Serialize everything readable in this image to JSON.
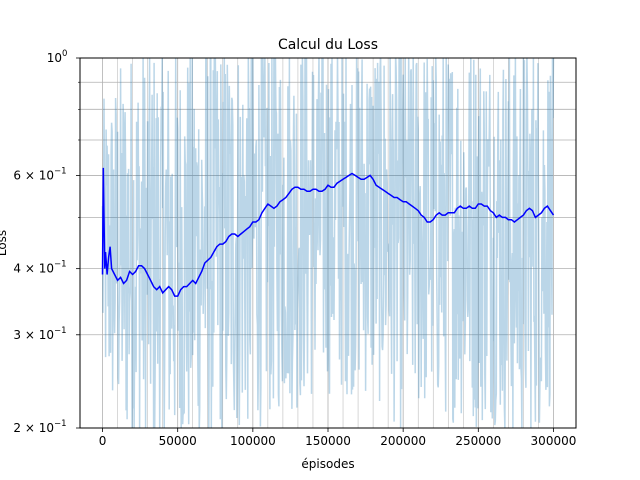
{
  "chart_data": {
    "type": "line",
    "title": "Calcul du Loss",
    "xlabel": "épisodes",
    "ylabel": "Loss",
    "xlim": [
      -15000,
      315000
    ],
    "ylim": [
      0.2,
      1.0
    ],
    "yscale": "log",
    "grid": "major and minor",
    "x_ticks": [
      {
        "value": 0,
        "label": "0"
      },
      {
        "value": 50000,
        "label": "50000"
      },
      {
        "value": 100000,
        "label": "100000"
      },
      {
        "value": 150000,
        "label": "150000"
      },
      {
        "value": 200000,
        "label": "200000"
      },
      {
        "value": 250000,
        "label": "250000"
      },
      {
        "value": 300000,
        "label": "300000"
      }
    ],
    "y_major_ticks": [
      {
        "value": 0.2,
        "base": "2 × 10",
        "exp": "−1"
      },
      {
        "value": 0.3,
        "base": "3 × 10",
        "exp": "−1"
      },
      {
        "value": 0.4,
        "base": "4 × 10",
        "exp": "−1"
      },
      {
        "value": 0.6,
        "base": "6 × 10",
        "exp": "−1"
      },
      {
        "value": 1.0,
        "base": "10",
        "exp": "0"
      }
    ],
    "y_minor_ticks": [
      0.5,
      0.7,
      0.8,
      0.9
    ],
    "raw_color": "#1f77b4",
    "smooth_color": "#0000ff",
    "series": [
      {
        "kind": "raw",
        "envelope": [
          {
            "x": 0,
            "lo": 0.26,
            "hi": 0.72
          },
          {
            "x": 10000,
            "lo": 0.22,
            "hi": 0.85
          },
          {
            "x": 20000,
            "lo": 0.2,
            "hi": 0.95
          },
          {
            "x": 30000,
            "lo": 0.2,
            "hi": 0.95
          },
          {
            "x": 40000,
            "lo": 0.2,
            "hi": 0.98
          },
          {
            "x": 50000,
            "lo": 0.2,
            "hi": 0.92
          },
          {
            "x": 60000,
            "lo": 0.2,
            "hi": 0.98
          },
          {
            "x": 70000,
            "lo": 0.2,
            "hi": 1.0
          },
          {
            "x": 80000,
            "lo": 0.21,
            "hi": 1.0
          },
          {
            "x": 90000,
            "lo": 0.22,
            "hi": 1.0
          },
          {
            "x": 100000,
            "lo": 0.23,
            "hi": 1.0
          },
          {
            "x": 110000,
            "lo": 0.24,
            "hi": 1.0
          },
          {
            "x": 120000,
            "lo": 0.25,
            "hi": 1.0
          },
          {
            "x": 130000,
            "lo": 0.25,
            "hi": 1.0
          },
          {
            "x": 140000,
            "lo": 0.26,
            "hi": 1.0
          },
          {
            "x": 150000,
            "lo": 0.27,
            "hi": 1.0
          },
          {
            "x": 160000,
            "lo": 0.27,
            "hi": 1.0
          },
          {
            "x": 170000,
            "lo": 0.27,
            "hi": 1.0
          },
          {
            "x": 180000,
            "lo": 0.26,
            "hi": 1.0
          },
          {
            "x": 190000,
            "lo": 0.25,
            "hi": 1.0
          },
          {
            "x": 200000,
            "lo": 0.22,
            "hi": 1.0
          },
          {
            "x": 210000,
            "lo": 0.24,
            "hi": 0.98
          },
          {
            "x": 220000,
            "lo": 0.25,
            "hi": 0.95
          },
          {
            "x": 230000,
            "lo": 0.24,
            "hi": 0.98
          },
          {
            "x": 240000,
            "lo": 0.24,
            "hi": 1.0
          },
          {
            "x": 250000,
            "lo": 0.23,
            "hi": 1.0
          },
          {
            "x": 260000,
            "lo": 0.24,
            "hi": 0.98
          },
          {
            "x": 270000,
            "lo": 0.22,
            "hi": 0.95
          },
          {
            "x": 280000,
            "lo": 0.21,
            "hi": 1.0
          },
          {
            "x": 290000,
            "lo": 0.23,
            "hi": 0.98
          },
          {
            "x": 300000,
            "lo": 0.26,
            "hi": 0.95
          }
        ]
      },
      {
        "kind": "smoothed",
        "points": [
          [
            0,
            0.39
          ],
          [
            500,
            0.62
          ],
          [
            1000,
            0.5
          ],
          [
            1500,
            0.4
          ],
          [
            2000,
            0.43
          ],
          [
            3000,
            0.39
          ],
          [
            4000,
            0.42
          ],
          [
            5000,
            0.44
          ],
          [
            6000,
            0.4
          ],
          [
            8000,
            0.39
          ],
          [
            10000,
            0.38
          ],
          [
            12000,
            0.385
          ],
          [
            14000,
            0.375
          ],
          [
            16000,
            0.38
          ],
          [
            18000,
            0.395
          ],
          [
            20000,
            0.39
          ],
          [
            22000,
            0.395
          ],
          [
            24000,
            0.405
          ],
          [
            26000,
            0.405
          ],
          [
            28000,
            0.4
          ],
          [
            30000,
            0.39
          ],
          [
            32000,
            0.38
          ],
          [
            34000,
            0.37
          ],
          [
            36000,
            0.365
          ],
          [
            38000,
            0.37
          ],
          [
            40000,
            0.36
          ],
          [
            42000,
            0.365
          ],
          [
            44000,
            0.37
          ],
          [
            46000,
            0.365
          ],
          [
            48000,
            0.355
          ],
          [
            50000,
            0.355
          ],
          [
            52000,
            0.365
          ],
          [
            54000,
            0.37
          ],
          [
            56000,
            0.37
          ],
          [
            58000,
            0.375
          ],
          [
            60000,
            0.38
          ],
          [
            62000,
            0.375
          ],
          [
            64000,
            0.385
          ],
          [
            66000,
            0.395
          ],
          [
            68000,
            0.41
          ],
          [
            70000,
            0.415
          ],
          [
            72000,
            0.42
          ],
          [
            74000,
            0.43
          ],
          [
            76000,
            0.44
          ],
          [
            78000,
            0.445
          ],
          [
            80000,
            0.445
          ],
          [
            82000,
            0.45
          ],
          [
            84000,
            0.46
          ],
          [
            86000,
            0.465
          ],
          [
            88000,
            0.465
          ],
          [
            90000,
            0.46
          ],
          [
            92000,
            0.465
          ],
          [
            94000,
            0.47
          ],
          [
            96000,
            0.475
          ],
          [
            98000,
            0.48
          ],
          [
            100000,
            0.49
          ],
          [
            102000,
            0.49
          ],
          [
            104000,
            0.495
          ],
          [
            106000,
            0.51
          ],
          [
            108000,
            0.52
          ],
          [
            110000,
            0.53
          ],
          [
            112000,
            0.525
          ],
          [
            114000,
            0.52
          ],
          [
            116000,
            0.525
          ],
          [
            118000,
            0.535
          ],
          [
            120000,
            0.54
          ],
          [
            122000,
            0.545
          ],
          [
            124000,
            0.555
          ],
          [
            126000,
            0.565
          ],
          [
            128000,
            0.57
          ],
          [
            130000,
            0.57
          ],
          [
            132000,
            0.565
          ],
          [
            134000,
            0.565
          ],
          [
            136000,
            0.56
          ],
          [
            138000,
            0.56
          ],
          [
            140000,
            0.565
          ],
          [
            142000,
            0.565
          ],
          [
            144000,
            0.56
          ],
          [
            146000,
            0.56
          ],
          [
            148000,
            0.565
          ],
          [
            150000,
            0.575
          ],
          [
            152000,
            0.57
          ],
          [
            154000,
            0.57
          ],
          [
            156000,
            0.58
          ],
          [
            158000,
            0.585
          ],
          [
            160000,
            0.59
          ],
          [
            162000,
            0.595
          ],
          [
            164000,
            0.6
          ],
          [
            166000,
            0.605
          ],
          [
            168000,
            0.6
          ],
          [
            170000,
            0.595
          ],
          [
            172000,
            0.59
          ],
          [
            174000,
            0.59
          ],
          [
            176000,
            0.595
          ],
          [
            178000,
            0.6
          ],
          [
            180000,
            0.59
          ],
          [
            182000,
            0.575
          ],
          [
            184000,
            0.57
          ],
          [
            186000,
            0.565
          ],
          [
            188000,
            0.56
          ],
          [
            190000,
            0.555
          ],
          [
            192000,
            0.55
          ],
          [
            194000,
            0.545
          ],
          [
            196000,
            0.545
          ],
          [
            198000,
            0.54
          ],
          [
            200000,
            0.535
          ],
          [
            202000,
            0.535
          ],
          [
            204000,
            0.53
          ],
          [
            206000,
            0.525
          ],
          [
            208000,
            0.52
          ],
          [
            210000,
            0.515
          ],
          [
            212000,
            0.505
          ],
          [
            214000,
            0.5
          ],
          [
            216000,
            0.49
          ],
          [
            218000,
            0.49
          ],
          [
            220000,
            0.495
          ],
          [
            222000,
            0.505
          ],
          [
            224000,
            0.51
          ],
          [
            226000,
            0.505
          ],
          [
            228000,
            0.505
          ],
          [
            230000,
            0.51
          ],
          [
            232000,
            0.51
          ],
          [
            234000,
            0.51
          ],
          [
            236000,
            0.52
          ],
          [
            238000,
            0.525
          ],
          [
            240000,
            0.52
          ],
          [
            242000,
            0.52
          ],
          [
            244000,
            0.525
          ],
          [
            246000,
            0.52
          ],
          [
            248000,
            0.52
          ],
          [
            250000,
            0.53
          ],
          [
            252000,
            0.53
          ],
          [
            254000,
            0.525
          ],
          [
            256000,
            0.525
          ],
          [
            258000,
            0.515
          ],
          [
            260000,
            0.51
          ],
          [
            262000,
            0.5
          ],
          [
            264000,
            0.505
          ],
          [
            266000,
            0.5
          ],
          [
            268000,
            0.5
          ],
          [
            270000,
            0.495
          ],
          [
            272000,
            0.495
          ],
          [
            274000,
            0.49
          ],
          [
            276000,
            0.495
          ],
          [
            278000,
            0.5
          ],
          [
            280000,
            0.505
          ],
          [
            282000,
            0.515
          ],
          [
            284000,
            0.52
          ],
          [
            286000,
            0.515
          ],
          [
            288000,
            0.5
          ],
          [
            290000,
            0.505
          ],
          [
            292000,
            0.51
          ],
          [
            294000,
            0.52
          ],
          [
            296000,
            0.525
          ],
          [
            298000,
            0.515
          ],
          [
            300000,
            0.505
          ]
        ]
      }
    ]
  }
}
